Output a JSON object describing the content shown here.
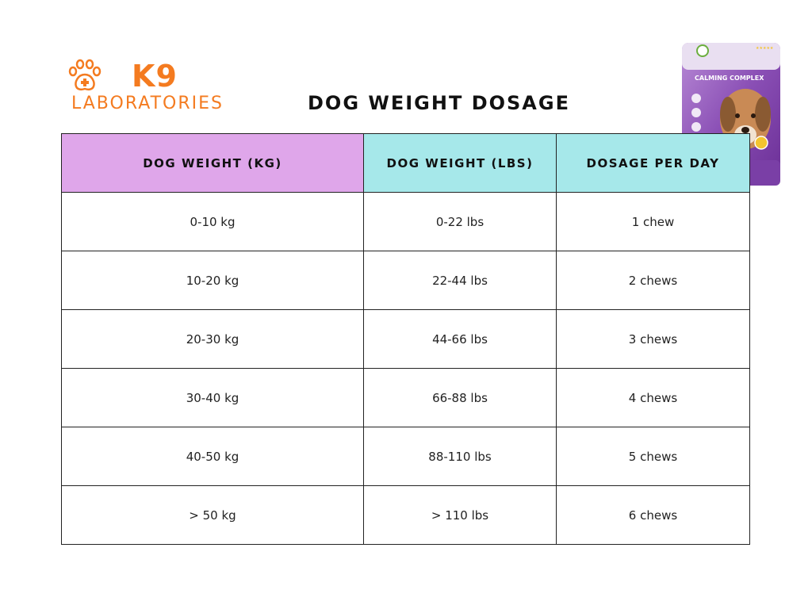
{
  "brand": {
    "name_primary": "K9",
    "name_secondary": "LABORATORIES",
    "logo_icon": "paw-cross-icon",
    "color": "#f47b20"
  },
  "title": "DOG WEIGHT DOSAGE",
  "product_image": {
    "label": "CALMING COMPLEX",
    "colors": {
      "pouch": "#8a4fb5",
      "accent": "#ffffff"
    }
  },
  "table": {
    "headers": [
      "DOG WEIGHT (KG)",
      "DOG WEIGHT (LBS)",
      "DOSAGE PER DAY"
    ],
    "header_colors": [
      "#dfa6ea",
      "#a6e8ea",
      "#a6e8ea"
    ],
    "rows": [
      [
        "0-10 kg",
        "0-22 lbs",
        "1 chew"
      ],
      [
        "10-20 kg",
        "22-44 lbs",
        "2 chews"
      ],
      [
        "20-30 kg",
        "44-66 lbs",
        "3 chews"
      ],
      [
        "30-40 kg",
        "66-88 lbs",
        "4 chews"
      ],
      [
        "40-50 kg",
        "88-110 lbs",
        "5 chews"
      ],
      [
        "> 50 kg",
        "> 110 lbs",
        "6 chews"
      ]
    ]
  }
}
